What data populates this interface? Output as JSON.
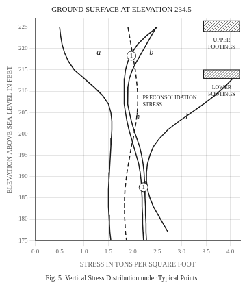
{
  "chart_data": {
    "type": "line",
    "title": "GROUND SURFACE AT ELEVATION 234.5",
    "caption": "Fig. 5  Vertical Stress Distribution under Typical Points",
    "xlabel": "STRESS IN TONS PER SQUARE FOOT",
    "ylabel": "ELEVATION ABOVE SEA LEVEL IN FEET",
    "xlim": [
      0,
      4.2
    ],
    "ylim": [
      175,
      227
    ],
    "xticks": [
      {
        "value": 0,
        "label": "0.0"
      },
      0.5,
      {
        "value": 1.0,
        "label": "1.0"
      },
      1.5,
      {
        "value": 2.0,
        "label": "2.0"
      },
      2.5,
      {
        "value": 3.0,
        "label": "3.0"
      },
      3.5,
      {
        "value": 4.0,
        "label": "4.0"
      }
    ],
    "yticks": [
      175,
      180,
      185,
      190,
      195,
      200,
      205,
      210,
      215,
      220,
      225
    ],
    "grid": true,
    "color": "#1a1a1a",
    "series": [
      {
        "line_style": "solid",
        "x": [
          0.5,
          0.52,
          0.55,
          0.6,
          0.68,
          0.8,
          1.0,
          1.2,
          1.38,
          1.5,
          1.55,
          1.57,
          1.57,
          1.56,
          1.55,
          1.54,
          1.53,
          1.52,
          1.51,
          1.5,
          1.5,
          1.5,
          1.51,
          1.52,
          1.53,
          1.55
        ],
        "y": [
          225,
          223,
          221,
          219,
          217,
          215,
          213,
          211,
          209,
          207,
          205,
          203,
          201,
          199,
          197,
          195,
          193,
          191,
          189,
          187,
          185,
          183,
          181,
          179,
          177,
          175
        ]
      },
      {
        "line_style": "solid",
        "x": [
          2.5,
          2.28,
          2.1,
          1.98,
          1.9,
          1.85,
          1.83,
          1.82,
          1.82,
          1.83,
          1.85,
          1.88,
          1.92,
          1.97,
          2.02,
          2.07,
          2.12,
          2.15,
          2.17,
          2.18,
          2.19,
          2.19,
          2.2,
          2.2,
          2.21,
          2.22
        ],
        "y": [
          225,
          223,
          221,
          219,
          217,
          215,
          213,
          211,
          209,
          207,
          205,
          203,
          201,
          199,
          197,
          195,
          193,
          191,
          189,
          187,
          185,
          183,
          181,
          179,
          177,
          175
        ]
      },
      {
        "line_style": "solid",
        "x": [
          2.48,
          2.38,
          2.28,
          2.18,
          2.08,
          1.99,
          1.93,
          1.9,
          1.89,
          1.9,
          1.93,
          1.97,
          2.02,
          2.08,
          2.14,
          2.18,
          2.21,
          2.23,
          2.24,
          2.25,
          2.25,
          2.26,
          2.26,
          2.27,
          2.27,
          2.28
        ],
        "y": [
          225,
          223,
          221,
          219,
          217,
          215,
          213,
          211,
          209,
          207,
          205,
          203,
          201,
          199,
          197,
          195,
          193,
          191,
          189,
          187,
          185,
          183,
          181,
          179,
          177,
          175
        ]
      },
      {
        "line_style": "solid",
        "x": [
          4.05,
          3.88,
          3.68,
          3.45,
          3.2,
          2.95,
          2.72,
          2.55,
          2.42,
          2.35,
          2.3,
          2.28,
          2.28,
          2.3,
          2.35,
          2.42,
          2.52,
          2.62,
          2.72
        ],
        "y": [
          213,
          211,
          209,
          207,
          205,
          203,
          201,
          199,
          197,
          195,
          193,
          191,
          189,
          187,
          185,
          183,
          181,
          179,
          177
        ]
      },
      {
        "line_style": "dashed",
        "x": [
          1.9,
          1.93,
          1.96,
          1.99,
          2.02,
          2.05,
          2.07,
          2.09,
          2.1,
          2.1,
          2.09,
          2.07,
          2.04,
          2.01,
          1.97,
          1.94,
          1.91,
          1.88,
          1.86,
          1.84,
          1.83,
          1.83,
          1.83,
          1.84,
          1.85,
          1.87
        ],
        "y": [
          225,
          223,
          221,
          219,
          217,
          215,
          213,
          211,
          209,
          207,
          205,
          203,
          201,
          199,
          197,
          195,
          193,
          191,
          189,
          187,
          185,
          183,
          181,
          179,
          177,
          175
        ]
      }
    ],
    "annotations": [
      {
        "text": "a",
        "x": 1.3,
        "y": 219
      },
      {
        "text": "b",
        "x": 2.38,
        "y": 219
      },
      {
        "text": "h",
        "x": 2.1,
        "y": 204
      },
      {
        "text": "l",
        "x": 3.1,
        "y": 204
      },
      {
        "text": "PRECONSOLIDATION\nSTRESS",
        "x": 2.2,
        "y": 209,
        "align": "left"
      },
      {
        "text": "UPPER\nFOOTINGS",
        "x": 3.82,
        "y": 222.5
      },
      {
        "text": "LOWER\nFOOTINGS",
        "x": 3.82,
        "y": 211.5
      }
    ],
    "circled_labels": [
      {
        "text": "1",
        "x": 1.97,
        "y": 218.3
      },
      {
        "text": "1",
        "x": 2.22,
        "y": 187.5
      }
    ],
    "boxes": [
      {
        "x1": 3.45,
        "x2": 4.2,
        "y": 224.0,
        "height": 2.5
      },
      {
        "x1": 3.45,
        "x2": 4.2,
        "y": 213.0,
        "height": 2.0
      }
    ]
  }
}
